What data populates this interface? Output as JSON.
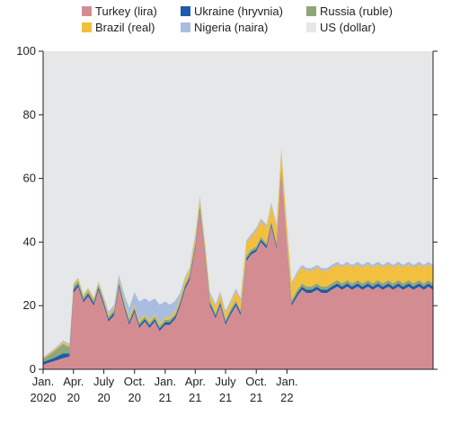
{
  "chart_data": {
    "type": "area",
    "stacked": true,
    "title": "",
    "xlabel": "",
    "ylabel": "",
    "ylim": [
      0,
      100
    ],
    "yticks": [
      0,
      20,
      40,
      60,
      80,
      100
    ],
    "xlim": [
      "2020-01-01",
      "2023-03-15"
    ],
    "x_ticks": [
      {
        "date": "2020-01-01",
        "line1": "Jan.",
        "line2": "2020"
      },
      {
        "date": "2020-04-01",
        "line1": "Apr.",
        "line2": "20"
      },
      {
        "date": "2020-07-01",
        "line1": "July",
        "line2": "20"
      },
      {
        "date": "2020-10-01",
        "line1": "Oct.",
        "line2": "20"
      },
      {
        "date": "2021-01-01",
        "line1": "Jan.",
        "line2": "21"
      },
      {
        "date": "2021-04-01",
        "line1": "Apr.",
        "line2": "21"
      },
      {
        "date": "2021-07-01",
        "line1": "July",
        "line2": "21"
      },
      {
        "date": "2021-10-01",
        "line1": "Oct.",
        "line2": "21"
      },
      {
        "date": "2022-01-01",
        "line1": "Jan.",
        "line2": "22"
      }
    ],
    "grid": false,
    "background_area_color": "#e6e7e8",
    "legend_position": "top",
    "dates": [
      "2020-01-01",
      "2020-02-01",
      "2020-03-01",
      "2020-03-20",
      "2020-04-01",
      "2020-04-15",
      "2020-05-01",
      "2020-05-15",
      "2020-06-01",
      "2020-06-15",
      "2020-07-01",
      "2020-07-15",
      "2020-08-01",
      "2020-08-15",
      "2020-09-01",
      "2020-09-15",
      "2020-10-01",
      "2020-10-15",
      "2020-11-01",
      "2020-11-15",
      "2020-12-01",
      "2020-12-15",
      "2021-01-01",
      "2021-01-15",
      "2021-02-01",
      "2021-02-15",
      "2021-03-01",
      "2021-03-15",
      "2021-04-01",
      "2021-04-15",
      "2021-05-01",
      "2021-05-15",
      "2021-06-01",
      "2021-06-15",
      "2021-07-01",
      "2021-07-15",
      "2021-08-01",
      "2021-08-15",
      "2021-09-01",
      "2021-09-15",
      "2021-10-01",
      "2021-10-15",
      "2021-11-01",
      "2021-11-15",
      "2021-12-01",
      "2021-12-15",
      "2022-01-01",
      "2022-01-15",
      "2022-02-01",
      "2022-02-15",
      "2022-03-01",
      "2022-03-15",
      "2022-04-01",
      "2022-04-15",
      "2022-05-01",
      "2022-05-15",
      "2022-06-01",
      "2022-06-15",
      "2022-07-01",
      "2022-07-15",
      "2022-08-01",
      "2022-08-15",
      "2022-09-01",
      "2022-09-15",
      "2022-10-01",
      "2022-10-15",
      "2022-11-01",
      "2022-11-15",
      "2022-12-01",
      "2022-12-15",
      "2023-01-01",
      "2023-01-15",
      "2023-02-01",
      "2023-02-15",
      "2023-03-01",
      "2023-03-15"
    ],
    "series": [
      {
        "name": "Turkey (lira)",
        "color": "#d48c93",
        "values": [
          1.5,
          2.5,
          3.5,
          4,
          24,
          26,
          21,
          23,
          20,
          25,
          20,
          15,
          17,
          26,
          19,
          14,
          18,
          13,
          15,
          13,
          15,
          12,
          14,
          14,
          16,
          20,
          25,
          28,
          38,
          50,
          35,
          20,
          16,
          20,
          14,
          17,
          20,
          17,
          34,
          36,
          37,
          40,
          38,
          45,
          38,
          62,
          38,
          20,
          23,
          25,
          24,
          24,
          25,
          24,
          24,
          25,
          26,
          25,
          26,
          25,
          26,
          25,
          26,
          25,
          26,
          25,
          26,
          25,
          26,
          25,
          26,
          25,
          26,
          25,
          26,
          25
        ]
      },
      {
        "name": "Ukraine (hryvnia)",
        "color": "#1f5ba8",
        "values": [
          0.8,
          1.0,
          1.5,
          1.0,
          1.0,
          0.8,
          0.8,
          0.8,
          0.8,
          0.8,
          0.8,
          0.8,
          0.8,
          0.8,
          0.8,
          0.8,
          0.8,
          0.8,
          0.8,
          0.8,
          0.8,
          0.8,
          0.8,
          0.8,
          0.8,
          0.8,
          0.8,
          0.8,
          0.8,
          0.8,
          0.8,
          0.8,
          0.8,
          0.8,
          0.8,
          0.8,
          0.8,
          0.8,
          0.8,
          0.8,
          0.8,
          0.8,
          0.8,
          0.8,
          0.8,
          0.8,
          0.8,
          0.8,
          1.0,
          1.0,
          1.0,
          1.0,
          1.0,
          1.0,
          1.0,
          1.0,
          1.0,
          1.0,
          1.0,
          1.0,
          1.0,
          1.0,
          1.0,
          1.0,
          1.0,
          1.0,
          1.0,
          1.0,
          1.0,
          1.0,
          1.0,
          1.0,
          1.0,
          1.0,
          1.0,
          1.0
        ]
      },
      {
        "name": "Russia (ruble)",
        "color": "#8ea679",
        "values": [
          1.0,
          2.0,
          3.0,
          2.0,
          1.0,
          1.0,
          0.8,
          0.8,
          0.8,
          0.8,
          0.8,
          0.8,
          0.8,
          0.8,
          0.8,
          0.8,
          0.8,
          0.8,
          0.8,
          0.8,
          0.8,
          0.8,
          0.8,
          0.8,
          0.8,
          0.8,
          0.8,
          0.8,
          0.8,
          0.8,
          0.8,
          0.8,
          0.8,
          0.8,
          0.8,
          0.8,
          0.8,
          0.8,
          0.8,
          0.8,
          0.8,
          0.8,
          0.8,
          0.8,
          0.8,
          0.8,
          0.8,
          0.8,
          1.0,
          1.0,
          1.0,
          1.0,
          1.0,
          1.0,
          1.0,
          1.0,
          1.0,
          1.0,
          1.0,
          1.0,
          1.0,
          1.0,
          1.0,
          1.0,
          1.0,
          1.0,
          1.0,
          1.0,
          1.0,
          1.0,
          1.0,
          1.0,
          1.0,
          1.0,
          1.0,
          1.0
        ]
      },
      {
        "name": "Brazil (real)",
        "color": "#f2bf3e",
        "values": [
          0.3,
          0.4,
          0.5,
          0.5,
          0.7,
          0.7,
          0.7,
          0.7,
          0.7,
          0.7,
          0.7,
          0.7,
          0.7,
          0.7,
          0.7,
          0.7,
          0.7,
          0.7,
          0.7,
          0.7,
          0.7,
          0.7,
          0.7,
          0.7,
          1.0,
          1.0,
          1.5,
          1.5,
          2.0,
          2.0,
          2.0,
          2.0,
          2.0,
          2.0,
          2.0,
          2.0,
          3.0,
          3.0,
          4.0,
          4.0,
          5.0,
          5.0,
          5.0,
          5.0,
          5.0,
          5.0,
          5.0,
          5.0,
          5.0,
          5.0,
          5.0,
          5.0,
          5.0,
          5.0,
          5.0,
          5.0,
          5.0,
          5.0,
          5.0,
          5.0,
          5.0,
          5.0,
          5.0,
          5.0,
          5.0,
          5.0,
          5.0,
          5.0,
          5.0,
          5.0,
          5.0,
          5.0,
          5.0,
          5.0,
          5.0,
          5.0
        ]
      },
      {
        "name": "Nigeria (naira)",
        "color": "#a9bde0",
        "values": [
          0.2,
          0.3,
          0.5,
          0.5,
          0.3,
          0.3,
          0.3,
          0.3,
          0.3,
          0.3,
          0.5,
          0.8,
          1.0,
          1.5,
          2.0,
          3.0,
          4.0,
          6.0,
          5.0,
          6.0,
          5.0,
          6.0,
          5.0,
          4.0,
          3.0,
          1.5,
          0.8,
          0.8,
          0.8,
          0.8,
          0.8,
          0.8,
          0.8,
          0.8,
          0.8,
          0.8,
          0.8,
          0.8,
          0.8,
          0.8,
          0.8,
          0.8,
          0.8,
          0.8,
          0.8,
          0.8,
          0.8,
          0.8,
          0.8,
          0.8,
          0.8,
          0.8,
          0.8,
          0.8,
          0.8,
          0.8,
          0.8,
          0.8,
          0.8,
          0.8,
          0.8,
          0.8,
          0.8,
          0.8,
          0.8,
          0.8,
          0.8,
          0.8,
          0.8,
          0.8,
          0.8,
          0.8,
          0.8,
          0.8,
          0.8,
          0.8
        ]
      },
      {
        "name": "US (dollar)",
        "color": "#e6e7e8",
        "values": "remainder_to_100"
      }
    ]
  }
}
